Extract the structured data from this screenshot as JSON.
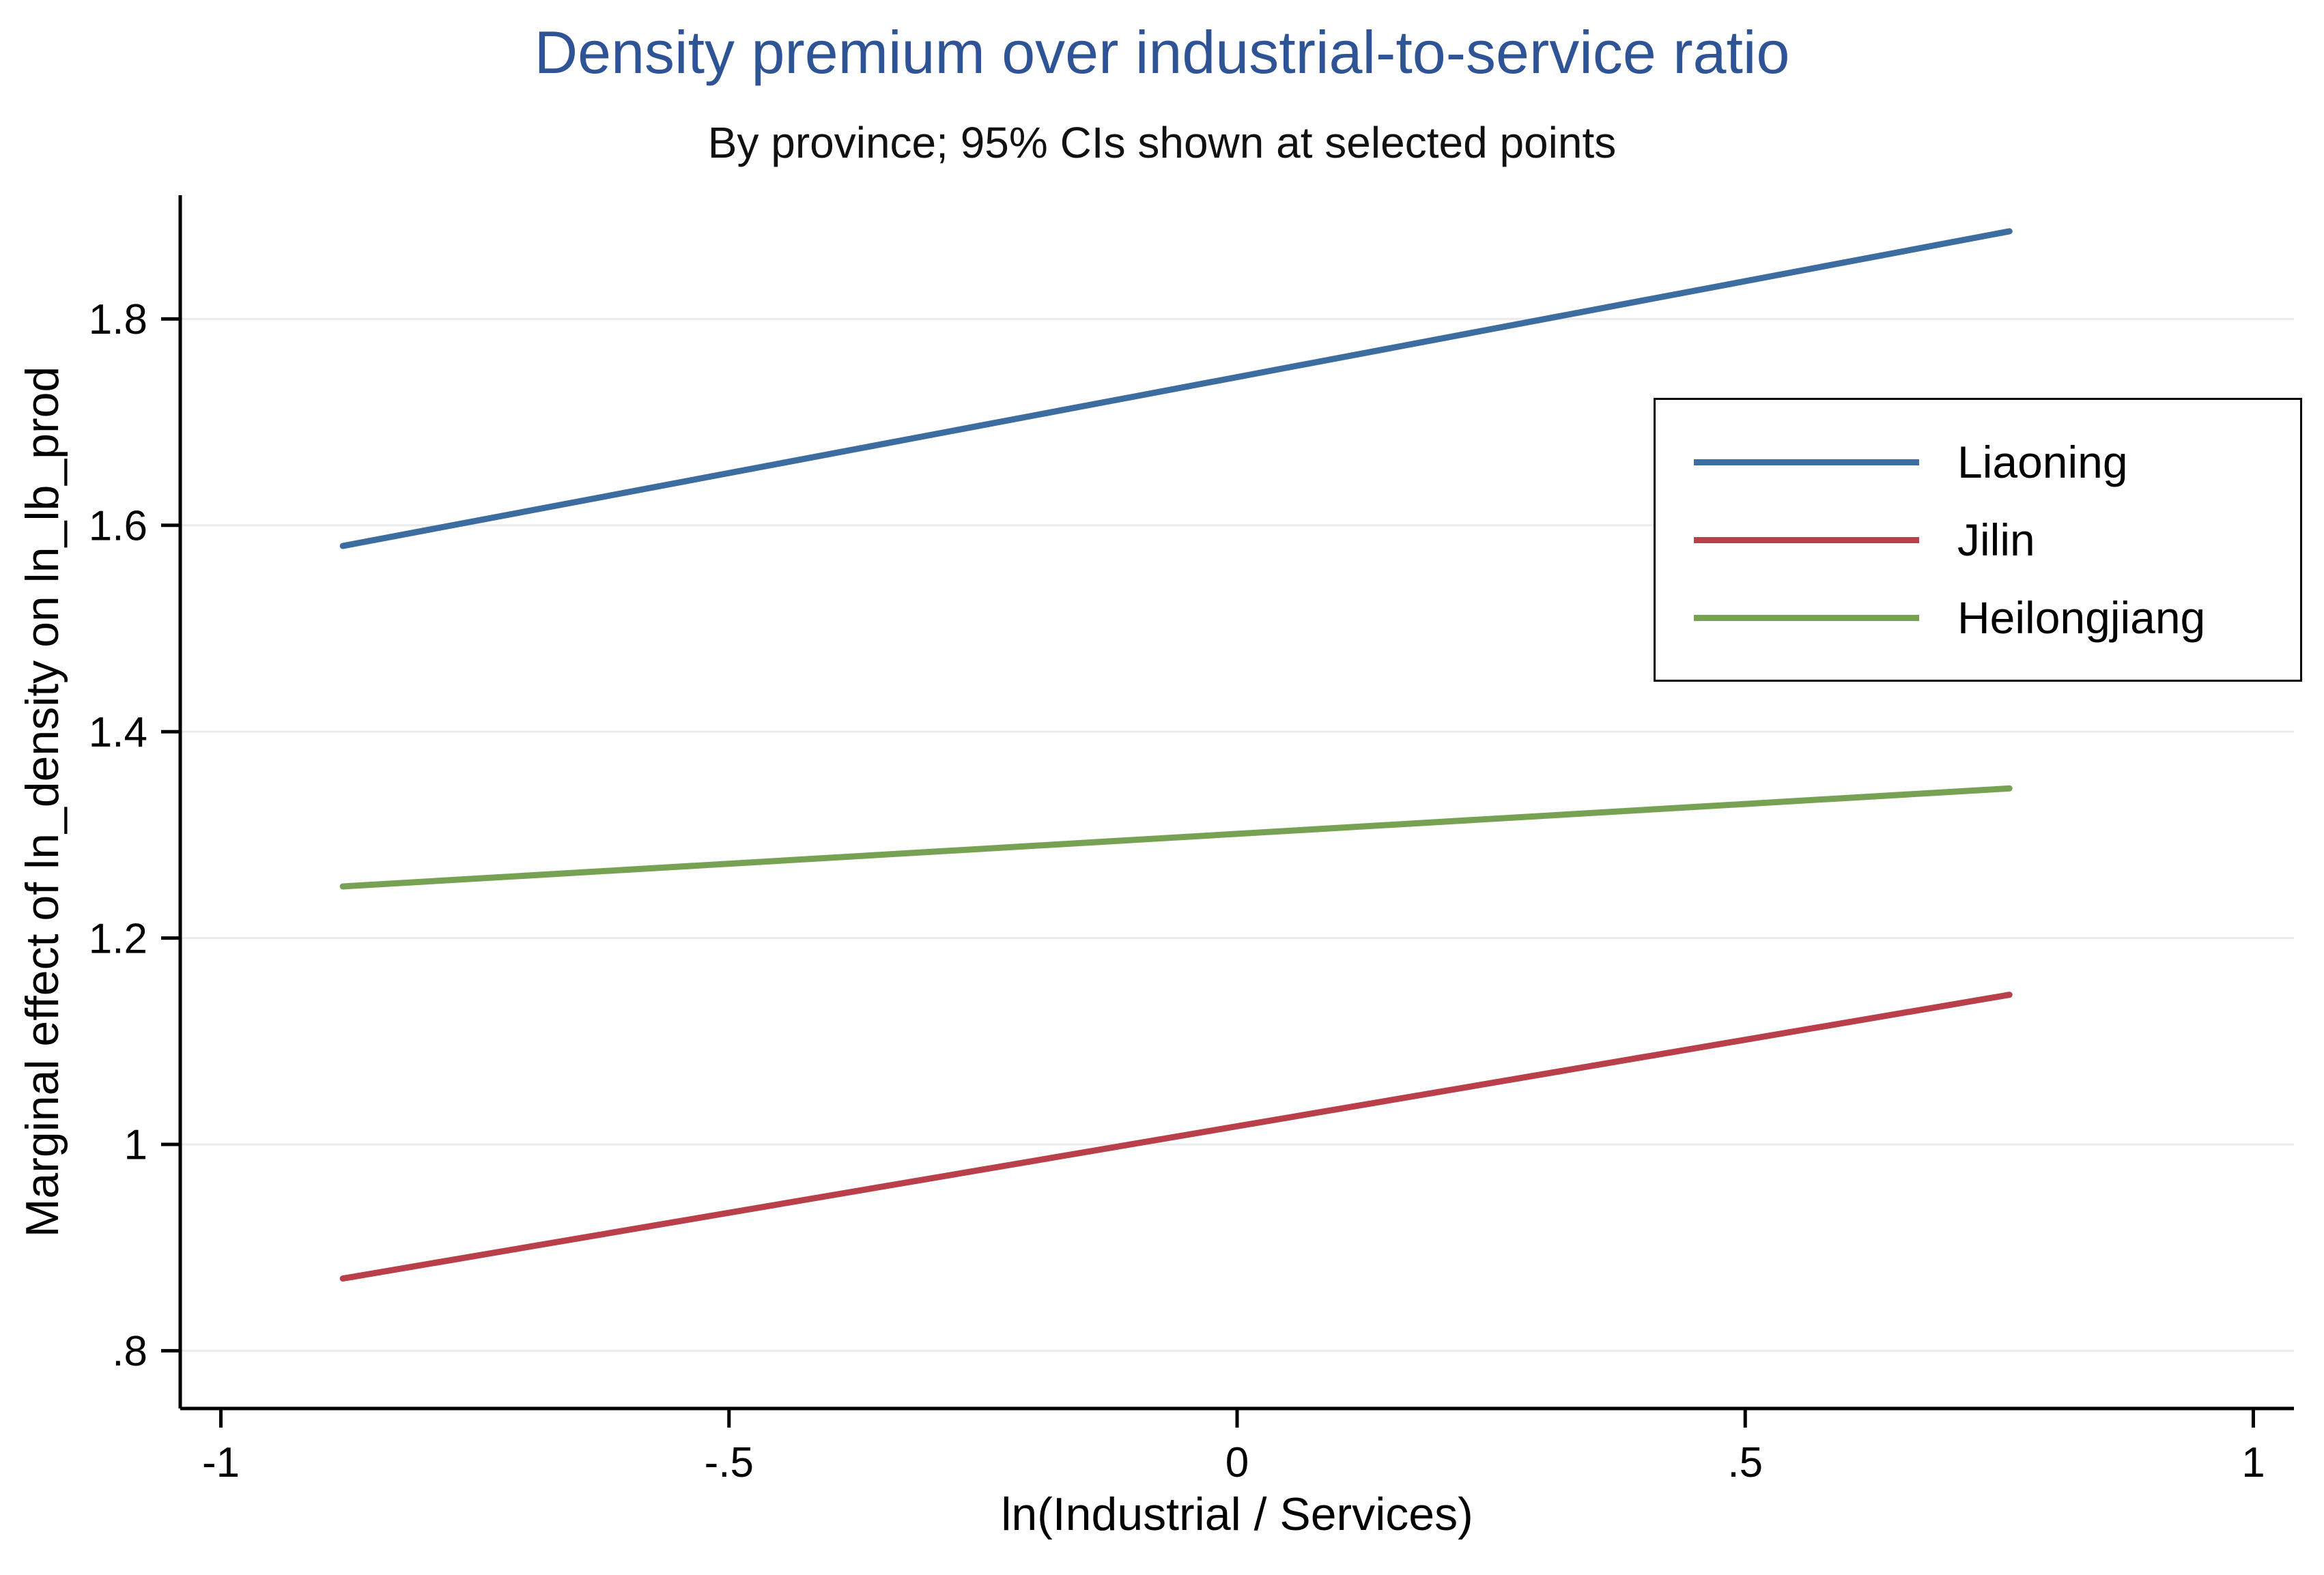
{
  "title": "Density premium over industrial-to-service ratio",
  "subtitle": "By province; 95% CIs shown at selected points",
  "colors": {
    "title": "#2f5496",
    "axis": "#000000",
    "grid": "#ebebeb",
    "liaoning": "#3c6ca0",
    "jilin": "#b9404b",
    "heilongjiang": "#77a153"
  },
  "chart_data": {
    "type": "line",
    "title": "Density premium over industrial-to-service ratio",
    "subtitle": "By province; 95% CIs shown at selected points",
    "xlabel": "ln(Industrial / Services)",
    "ylabel": "Marginal effect of ln_density on ln_lb_prod",
    "xlim": [
      -1.04,
      1.04
    ],
    "ylim": [
      0.744,
      1.92
    ],
    "x_ticks": [
      -1,
      -0.5,
      0,
      0.5,
      1
    ],
    "x_tick_labels": [
      "-1",
      "-.5",
      "0",
      ".5",
      "1"
    ],
    "y_ticks": [
      0.8,
      1,
      1.2,
      1.4,
      1.6,
      1.8
    ],
    "y_tick_labels": [
      ".8",
      "1",
      "1.2",
      "1.4",
      "1.6",
      "1.8"
    ],
    "grid": "horizontal-faint",
    "legend_position": "upper right",
    "series": [
      {
        "name": "Liaoning",
        "color": "#3c6ca0",
        "x": [
          -0.88,
          0.76
        ],
        "y": [
          1.58,
          1.885
        ]
      },
      {
        "name": "Jilin",
        "color": "#b9404b",
        "x": [
          -0.88,
          0.76
        ],
        "y": [
          0.87,
          1.145
        ]
      },
      {
        "name": "Heilongjiang",
        "color": "#77a153",
        "x": [
          -0.88,
          0.76
        ],
        "y": [
          1.25,
          1.345
        ]
      }
    ]
  }
}
